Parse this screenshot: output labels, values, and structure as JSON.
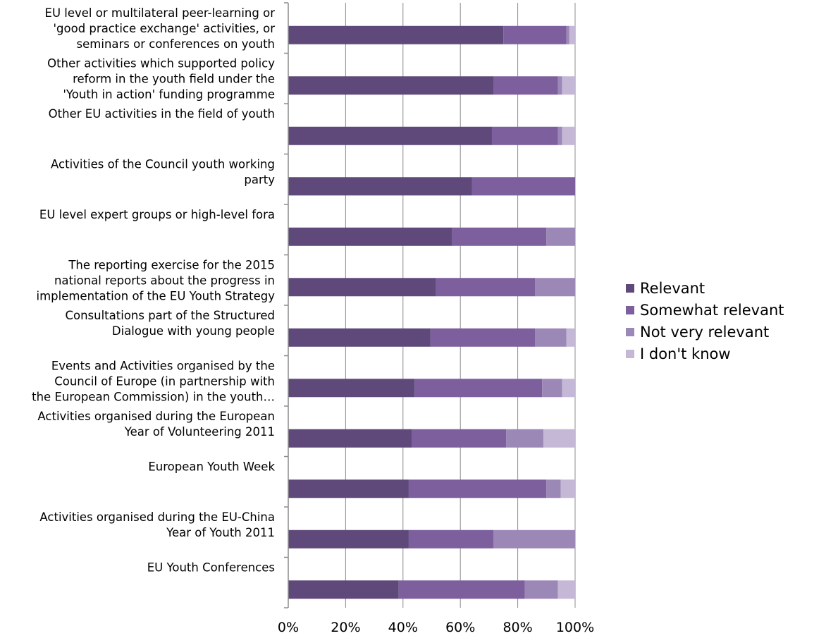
{
  "chart_data": {
    "type": "bar",
    "orientation": "horizontal",
    "stacked": true,
    "percent": true,
    "xlim": [
      0,
      100
    ],
    "grid": true,
    "legend_position": "right",
    "x_ticks": [
      "0%",
      "20%",
      "40%",
      "60%",
      "80%",
      "100%"
    ],
    "x_tick_values": [
      0,
      20,
      40,
      60,
      80,
      100
    ],
    "categories": [
      [
        "EU level or multilateral peer-learning or",
        "'good practice exchange' activities, or",
        "seminars or conferences on youth"
      ],
      [
        "Other activities which supported policy",
        "reform in the youth field under the",
        "'Youth in action' funding programme"
      ],
      [
        "Other EU activities in the field of youth"
      ],
      [
        "Activities of the Council youth working",
        "party"
      ],
      [
        "EU level expert groups or high-level fora"
      ],
      [
        "The reporting exercise for the 2015",
        "national reports about the progress in",
        "implementation of the EU Youth Strategy"
      ],
      [
        "Consultations part of the Structured",
        "Dialogue with young people"
      ],
      [
        "Events and Activities organised by the",
        "Council of Europe (in partnership with",
        "the European Commission) in the youth…"
      ],
      [
        "Activities organised during the European",
        "Year of Volunteering 2011"
      ],
      [
        "European Youth Week"
      ],
      [
        "Activities organised during the EU-China",
        "Year of Youth 2011"
      ],
      [
        "EU Youth Conferences"
      ]
    ],
    "series": [
      {
        "name": "Relevant",
        "color": "#5f497a",
        "values": [
          75,
          71.5,
          71,
          64,
          57,
          51.5,
          49.5,
          44,
          43,
          42,
          42,
          38.5
        ]
      },
      {
        "name": "Somewhat relevant",
        "color": "#7d5f9e",
        "values": [
          22,
          22.5,
          23,
          36,
          33,
          34.5,
          36.5,
          44.5,
          33,
          48,
          29.5,
          44
        ]
      },
      {
        "name": "Not very relevant",
        "color": "#9c88b6",
        "values": [
          1,
          1.5,
          1.5,
          0,
          10,
          14,
          11,
          7,
          13,
          5,
          28.5,
          11.5
        ]
      },
      {
        "name": "I don't know",
        "color": "#c5b8d6",
        "values": [
          2,
          4.5,
          4.5,
          0,
          0,
          0,
          3,
          4.5,
          11,
          5,
          0,
          6
        ]
      }
    ]
  }
}
